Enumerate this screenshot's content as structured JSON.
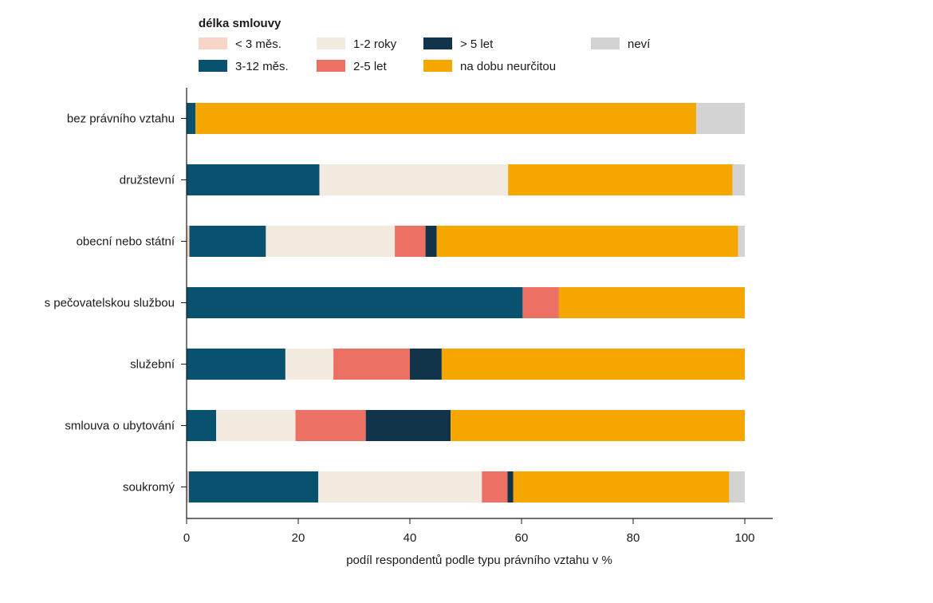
{
  "chart_data": {
    "type": "bar",
    "orientation": "horizontal",
    "stacked": true,
    "title": "",
    "xlabel": "podíl respondentů podle typu právního vztahu v %",
    "ylabel": "",
    "xlim": [
      0,
      105
    ],
    "xticks": [
      0,
      20,
      40,
      60,
      80,
      100
    ],
    "grid": false,
    "legend": {
      "title": "délka smlouvy",
      "placement": "top"
    },
    "categories": [
      "bez právního vztahu",
      "družstevní",
      "obecní nebo státní",
      "s pečovatelskou službou",
      "služební",
      "smlouva o ubytování",
      "soukromý"
    ],
    "series": [
      {
        "name": "< 3 měs.",
        "color": "#f9d5c8",
        "values": [
          0,
          0,
          0.5,
          0,
          0,
          0,
          0.4
        ]
      },
      {
        "name": "3-12 měs.",
        "color": "#08526f",
        "values": [
          1.6,
          23.8,
          13.7,
          60.2,
          17.7,
          5.3,
          23.2
        ]
      },
      {
        "name": "1-2 roky",
        "color": "#f4ebe0",
        "values": [
          0,
          33.8,
          23.1,
          0,
          8.6,
          14.2,
          29.3
        ]
      },
      {
        "name": "2-5 let",
        "color": "#ec7063",
        "values": [
          0,
          0,
          5.5,
          6.5,
          13.7,
          12.6,
          4.6
        ]
      },
      {
        "name": "> 5 let",
        "color": "#12344a",
        "values": [
          0,
          0,
          2.0,
          0,
          5.7,
          15.2,
          1.0
        ]
      },
      {
        "name": "na dobu neurčitou",
        "color": "#f5a700",
        "values": [
          89.7,
          40.2,
          54.0,
          33.3,
          54.3,
          52.7,
          38.7
        ]
      },
      {
        "name": "neví",
        "color": "#d3d3d3",
        "values": [
          8.7,
          2.2,
          1.2,
          0,
          0,
          0,
          2.8
        ]
      }
    ]
  }
}
